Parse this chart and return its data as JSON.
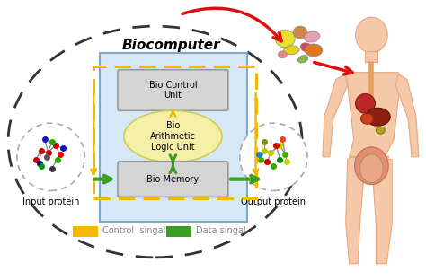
{
  "biocomputer_label": "Biocomputer",
  "bio_control_unit_label": "Bio Control\nUnit",
  "bio_alu_label": "Bio\nArithmetic\nLogic Unit",
  "bio_memory_label": "Bio Memory",
  "input_protein_label": "Input protein",
  "output_protein_label": "Output protein",
  "control_signal_label": "Control  singal",
  "data_signal_label": "Data singal",
  "bg_color": "#ffffff",
  "dashed_circle_color": "#333333",
  "blue_box_color": "#d6e8f5",
  "blue_box_edge": "#7aaac8",
  "bio_control_box_color": "#d4d4d4",
  "bio_control_box_edge": "#999999",
  "bio_alu_ellipse_color": "#f5f0a8",
  "bio_alu_ellipse_edge": "#cccc55",
  "bio_memory_box_color": "#d4d4d4",
  "bio_memory_box_edge": "#999999",
  "yellow_dashed_color": "#f5b800",
  "green_arrow_color": "#3a9e22",
  "red_arrow_color": "#dd1111",
  "skin_color": "#f5c8a8",
  "skin_edge": "#e8a882",
  "organ_red": "#c83020",
  "organ_dark": "#8b2010"
}
